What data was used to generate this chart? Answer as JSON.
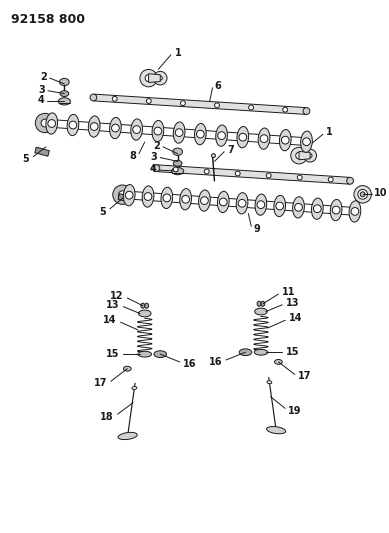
{
  "title": "92158 800",
  "bg_color": "#ffffff",
  "line_color": "#1a1a1a",
  "gray_color": "#888888",
  "light_gray": "#cccccc",
  "title_fontsize": 9,
  "label_fontsize": 7,
  "fig_width": 3.89,
  "fig_height": 5.33,
  "dpi": 100
}
